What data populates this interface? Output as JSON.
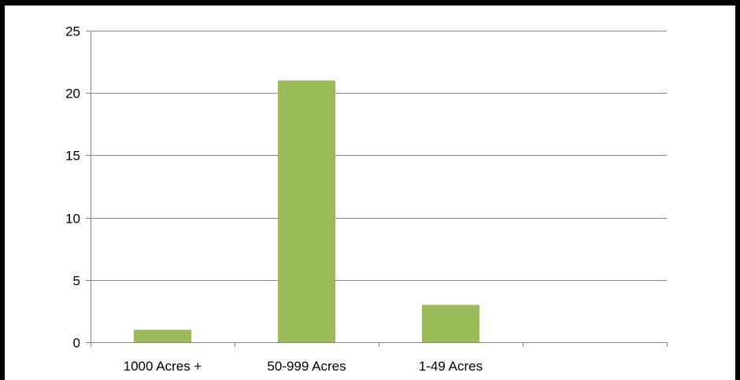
{
  "chart_data": {
    "type": "bar",
    "title": "",
    "xlabel": "",
    "ylabel": "",
    "categories": [
      "1000 Acres +",
      "50-999 Acres",
      "1-49 Acres",
      ""
    ],
    "values": [
      1,
      21,
      3,
      0
    ],
    "ylim": [
      0,
      25
    ],
    "yticks": [
      0,
      5,
      10,
      15,
      20,
      25
    ],
    "grid": true,
    "legend": "none",
    "bar_color": "#9bbb59",
    "gridline_color": "#868686",
    "frame_color": "#000000"
  }
}
